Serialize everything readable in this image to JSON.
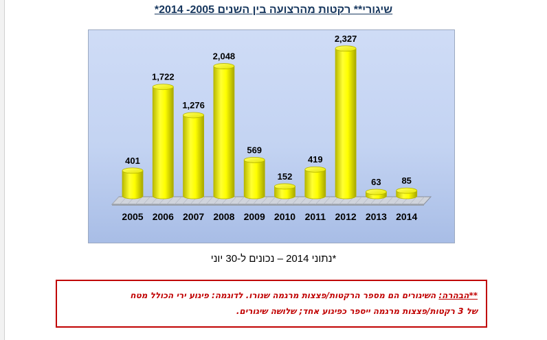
{
  "title": "שיגורי** רקטות מהרצועה בין השנים 2005- 2014*",
  "footnote": "*נתוני 2014 – נכונים ל-30 יוני",
  "note": {
    "label": "**הבהרה:",
    "line1_text": " השיגורים הם מספר הרקטות/פצצות מרגמה שנורו. לדוגמה: פיגוע ירי הכולל מטח",
    "line2_text": "של 3 רקטות/פצצות מרגמה ייספר כפיגוע אחד; שלושה שיגורים."
  },
  "chart_data": {
    "type": "bar",
    "categories": [
      "2005",
      "2006",
      "2007",
      "2008",
      "2009",
      "2010",
      "2011",
      "2012",
      "2013",
      "2014"
    ],
    "values": [
      401,
      1722,
      1276,
      2048,
      569,
      152,
      419,
      2327,
      63,
      85
    ],
    "value_labels": [
      "401",
      "1,722",
      "1,276",
      "2,048",
      "569",
      "152",
      "419",
      "2,327",
      "63",
      "85"
    ],
    "ylim": [
      0,
      2400
    ],
    "bar_color": "#ffff00",
    "bar_edge_color": "#b3b300",
    "grid": false,
    "legend": false
  }
}
